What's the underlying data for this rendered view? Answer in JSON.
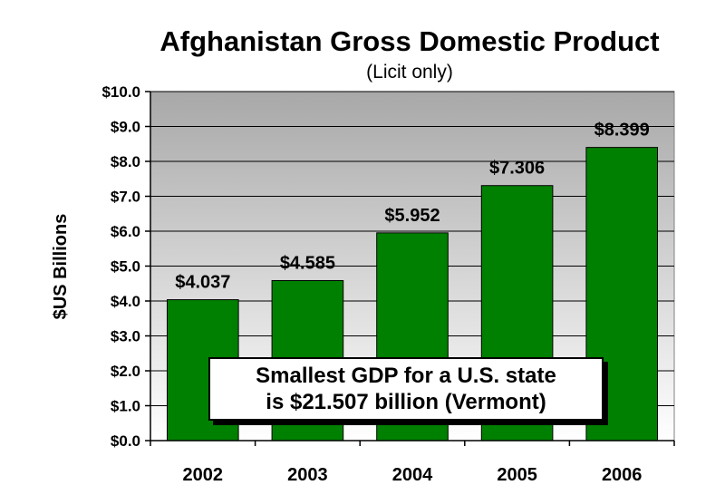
{
  "chart_data": {
    "type": "bar",
    "title": "Afghanistan Gross Domestic Product",
    "subtitle": "(Licit only)",
    "ylabel": "$US Billions",
    "xlabel": "",
    "categories": [
      "2002",
      "2003",
      "2004",
      "2005",
      "2006"
    ],
    "values": [
      4.037,
      4.585,
      5.952,
      7.306,
      8.399
    ],
    "data_labels": [
      "$4.037",
      "$4.585",
      "$5.952",
      "$7.306",
      "$8.399"
    ],
    "ylim": [
      0,
      10
    ],
    "yticks": [
      0,
      1,
      2,
      3,
      4,
      5,
      6,
      7,
      8,
      9,
      10
    ],
    "ytick_labels": [
      "$0.0",
      "$1.0",
      "$2.0",
      "$3.0",
      "$4.0",
      "$5.0",
      "$6.0",
      "$7.0",
      "$8.0",
      "$9.0",
      "$10.0"
    ],
    "grid": true,
    "legend": "none",
    "bar_color": "#008000",
    "plot_background": "gradient gray (dark top to light bottom)",
    "annotation": {
      "lines": [
        "Smallest GDP for a U.S. state",
        "is $21.507 billion (Vermont)"
      ]
    }
  }
}
